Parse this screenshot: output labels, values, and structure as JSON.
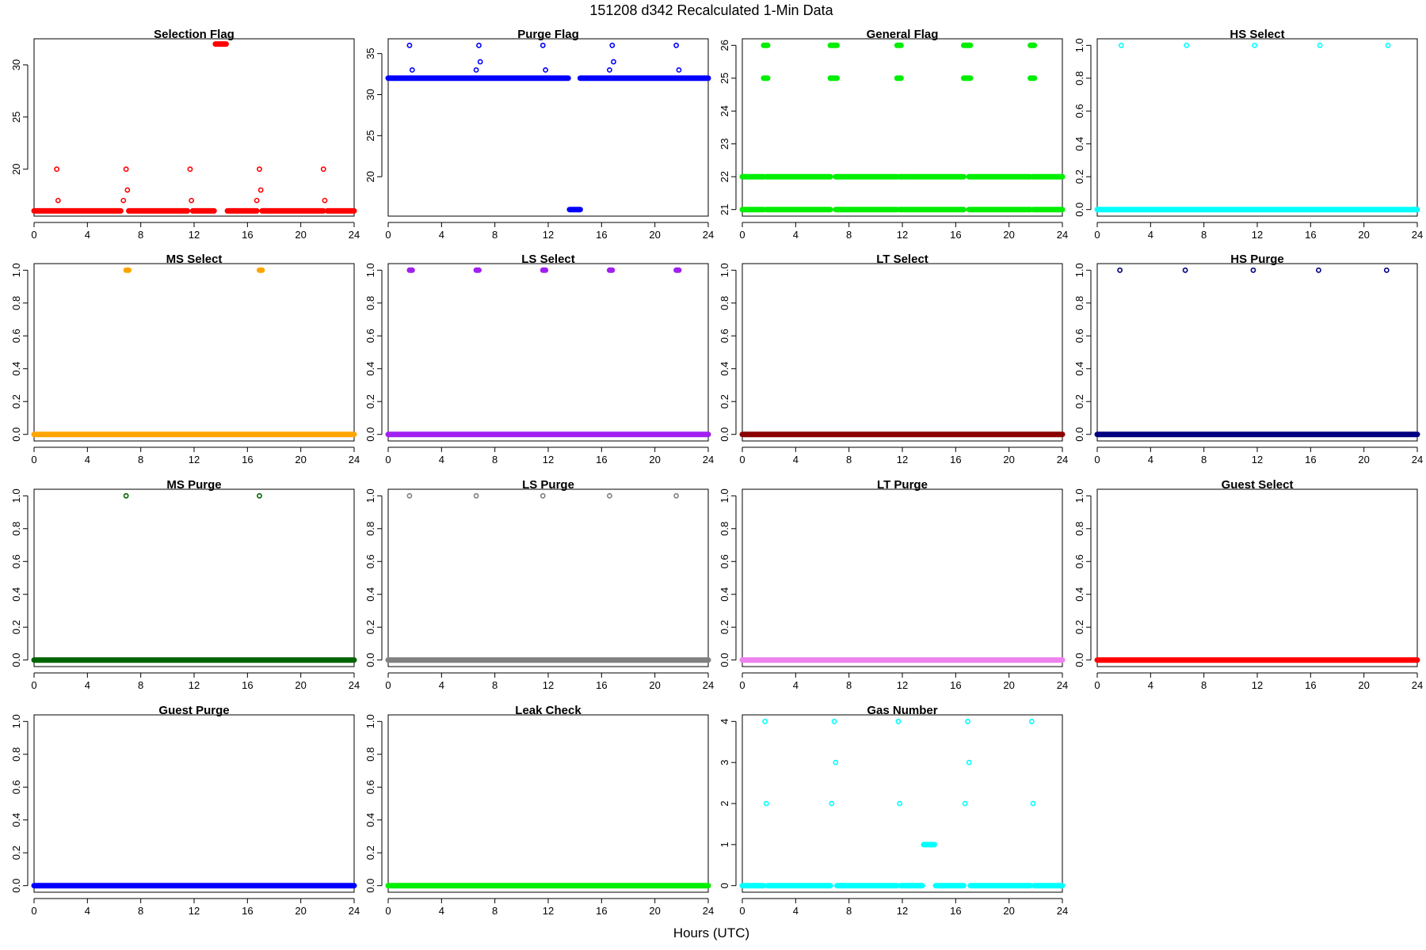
{
  "figure": {
    "title": "151208    d342    Recalculated 1-Min Data",
    "xlabel": "Hours (UTC)"
  },
  "chart_data": [
    {
      "type": "scatter",
      "title": "Selection Flag",
      "color": "#ff0000",
      "filled": false,
      "xlim": [
        0,
        24
      ],
      "ylim": [
        15.5,
        32.5
      ],
      "xticks": [
        0,
        4,
        8,
        12,
        16,
        20,
        24
      ],
      "yticks": [
        20,
        25,
        30
      ],
      "baselines": [
        {
          "y": 16,
          "segments": [
            [
              0,
              6.5
            ],
            [
              7.1,
              11.5
            ],
            [
              11.9,
              13.5
            ],
            [
              14.5,
              16.7
            ],
            [
              17.1,
              21.7
            ],
            [
              22.0,
              24
            ]
          ]
        }
      ],
      "clusters": [
        {
          "y": 32,
          "x0": 13.6,
          "x1": 14.4
        }
      ],
      "points": [
        [
          1.7,
          20
        ],
        [
          1.8,
          17
        ],
        [
          6.7,
          17
        ],
        [
          6.9,
          20
        ],
        [
          7.0,
          18
        ],
        [
          11.7,
          20
        ],
        [
          11.8,
          17
        ],
        [
          16.7,
          17
        ],
        [
          16.9,
          20
        ],
        [
          17.0,
          18
        ],
        [
          21.7,
          20
        ],
        [
          21.8,
          17
        ]
      ]
    },
    {
      "type": "scatter",
      "title": "Purge Flag",
      "color": "#0000ff",
      "filled": false,
      "xlim": [
        0,
        24
      ],
      "ylim": [
        15.2,
        36.8
      ],
      "xticks": [
        0,
        4,
        8,
        12,
        16,
        20,
        24
      ],
      "yticks": [
        20,
        25,
        30,
        35
      ],
      "baselines": [
        {
          "y": 32,
          "segments": [
            [
              0,
              13.5
            ],
            [
              14.4,
              24
            ]
          ]
        }
      ],
      "clusters": [
        {
          "y": 16,
          "x0": 13.6,
          "x1": 14.4
        }
      ],
      "points": [
        [
          1.6,
          36
        ],
        [
          1.8,
          33
        ],
        [
          6.6,
          33
        ],
        [
          6.8,
          36
        ],
        [
          6.9,
          34
        ],
        [
          11.6,
          36
        ],
        [
          11.8,
          33
        ],
        [
          16.6,
          33
        ],
        [
          16.8,
          36
        ],
        [
          16.9,
          34
        ],
        [
          21.6,
          36
        ],
        [
          21.8,
          33
        ]
      ]
    },
    {
      "type": "scatter",
      "title": "General Flag",
      "color": "#00ee00",
      "filled": false,
      "xlim": [
        0,
        24
      ],
      "ylim": [
        20.8,
        26.2
      ],
      "xticks": [
        0,
        4,
        8,
        12,
        16,
        20,
        24
      ],
      "yticks": [
        21,
        22,
        23,
        24,
        25,
        26
      ],
      "baselines": [
        {
          "y": 21,
          "segments": [
            [
              0,
              1.6
            ],
            [
              1.8,
              6.6
            ],
            [
              7.0,
              11.6
            ],
            [
              11.8,
              16.6
            ],
            [
              17.0,
              21.6
            ],
            [
              21.8,
              24
            ]
          ]
        },
        {
          "y": 22,
          "segments": [
            [
              0,
              1.6
            ],
            [
              1.8,
              6.6
            ],
            [
              7.0,
              11.6
            ],
            [
              11.8,
              16.6
            ],
            [
              17.0,
              21.6
            ],
            [
              21.8,
              24
            ]
          ]
        }
      ],
      "clusters": [
        {
          "y": 25,
          "x0": 1.6,
          "x1": 1.9
        },
        {
          "y": 26,
          "x0": 1.6,
          "x1": 1.9
        },
        {
          "y": 25,
          "x0": 6.6,
          "x1": 7.1
        },
        {
          "y": 26,
          "x0": 6.6,
          "x1": 7.1
        },
        {
          "y": 25,
          "x0": 11.6,
          "x1": 11.9
        },
        {
          "y": 26,
          "x0": 11.6,
          "x1": 11.9
        },
        {
          "y": 25,
          "x0": 16.6,
          "x1": 17.1
        },
        {
          "y": 26,
          "x0": 16.6,
          "x1": 17.1
        },
        {
          "y": 25,
          "x0": 21.6,
          "x1": 21.9
        },
        {
          "y": 26,
          "x0": 21.6,
          "x1": 21.9
        }
      ],
      "points": []
    },
    {
      "type": "scatter",
      "title": "HS Select",
      "color": "#00ffff",
      "filled": false,
      "xlim": [
        0,
        24
      ],
      "ylim": [
        -0.04,
        1.04
      ],
      "xticks": [
        0,
        4,
        8,
        12,
        16,
        20,
        24
      ],
      "yticks": [
        0.0,
        0.2,
        0.4,
        0.6,
        0.8,
        1.0
      ],
      "baselines": [
        {
          "y": 0,
          "segments": [
            [
              0,
              24
            ]
          ]
        }
      ],
      "clusters": [],
      "points": [
        [
          1.8,
          1
        ],
        [
          6.7,
          1
        ],
        [
          11.8,
          1
        ],
        [
          16.7,
          1
        ],
        [
          21.8,
          1
        ]
      ]
    },
    {
      "type": "scatter",
      "title": "MS Select",
      "color": "#ffa500",
      "filled": false,
      "xlim": [
        0,
        24
      ],
      "ylim": [
        -0.04,
        1.04
      ],
      "xticks": [
        0,
        4,
        8,
        12,
        16,
        20,
        24
      ],
      "yticks": [
        0.0,
        0.2,
        0.4,
        0.6,
        0.8,
        1.0
      ],
      "baselines": [
        {
          "y": 0,
          "segments": [
            [
              0,
              24
            ]
          ]
        }
      ],
      "clusters": [
        {
          "y": 1,
          "x0": 6.9,
          "x1": 7.1
        },
        {
          "y": 1,
          "x0": 16.9,
          "x1": 17.1
        }
      ],
      "points": []
    },
    {
      "type": "scatter",
      "title": "LS Select",
      "color": "#a020f0",
      "filled": false,
      "xlim": [
        0,
        24
      ],
      "ylim": [
        -0.04,
        1.04
      ],
      "xticks": [
        0,
        4,
        8,
        12,
        16,
        20,
        24
      ],
      "yticks": [
        0.0,
        0.2,
        0.4,
        0.6,
        0.8,
        1.0
      ],
      "baselines": [
        {
          "y": 0,
          "segments": [
            [
              0,
              24
            ]
          ]
        }
      ],
      "clusters": [
        {
          "y": 1,
          "x0": 1.6,
          "x1": 1.8
        },
        {
          "y": 1,
          "x0": 6.6,
          "x1": 6.8
        },
        {
          "y": 1,
          "x0": 11.6,
          "x1": 11.8
        },
        {
          "y": 1,
          "x0": 16.6,
          "x1": 16.8
        },
        {
          "y": 1,
          "x0": 21.6,
          "x1": 21.8
        }
      ],
      "points": []
    },
    {
      "type": "scatter",
      "title": "LT Select",
      "color": "#8b0000",
      "filled": false,
      "xlim": [
        0,
        24
      ],
      "ylim": [
        -0.04,
        1.04
      ],
      "xticks": [
        0,
        4,
        8,
        12,
        16,
        20,
        24
      ],
      "yticks": [
        0.0,
        0.2,
        0.4,
        0.6,
        0.8,
        1.0
      ],
      "baselines": [
        {
          "y": 0,
          "segments": [
            [
              0,
              24
            ]
          ]
        }
      ],
      "clusters": [],
      "points": []
    },
    {
      "type": "scatter",
      "title": "HS Purge",
      "color": "#000080",
      "filled": false,
      "xlim": [
        0,
        24
      ],
      "ylim": [
        -0.04,
        1.04
      ],
      "xticks": [
        0,
        4,
        8,
        12,
        16,
        20,
        24
      ],
      "yticks": [
        0.0,
        0.2,
        0.4,
        0.6,
        0.8,
        1.0
      ],
      "baselines": [
        {
          "y": 0,
          "segments": [
            [
              0,
              24
            ]
          ]
        }
      ],
      "clusters": [],
      "points": [
        [
          1.7,
          1
        ],
        [
          6.6,
          1
        ],
        [
          11.7,
          1
        ],
        [
          16.6,
          1
        ],
        [
          21.7,
          1
        ]
      ]
    },
    {
      "type": "scatter",
      "title": "MS Purge",
      "color": "#006400",
      "filled": false,
      "xlim": [
        0,
        24
      ],
      "ylim": [
        -0.04,
        1.04
      ],
      "xticks": [
        0,
        4,
        8,
        12,
        16,
        20,
        24
      ],
      "yticks": [
        0.0,
        0.2,
        0.4,
        0.6,
        0.8,
        1.0
      ],
      "baselines": [
        {
          "y": 0,
          "segments": [
            [
              0,
              24
            ]
          ]
        }
      ],
      "clusters": [],
      "points": [
        [
          6.9,
          1
        ],
        [
          16.9,
          1
        ]
      ]
    },
    {
      "type": "scatter",
      "title": "LS Purge",
      "color": "#808080",
      "filled": false,
      "xlim": [
        0,
        24
      ],
      "ylim": [
        -0.04,
        1.04
      ],
      "xticks": [
        0,
        4,
        8,
        12,
        16,
        20,
        24
      ],
      "yticks": [
        0.0,
        0.2,
        0.4,
        0.6,
        0.8,
        1.0
      ],
      "baselines": [
        {
          "y": 0,
          "segments": [
            [
              0,
              24
            ]
          ]
        }
      ],
      "clusters": [],
      "points": [
        [
          1.6,
          1
        ],
        [
          6.6,
          1
        ],
        [
          11.6,
          1
        ],
        [
          16.6,
          1
        ],
        [
          21.6,
          1
        ]
      ]
    },
    {
      "type": "scatter",
      "title": "LT Purge",
      "color": "#ee82ee",
      "filled": false,
      "xlim": [
        0,
        24
      ],
      "ylim": [
        -0.04,
        1.04
      ],
      "xticks": [
        0,
        4,
        8,
        12,
        16,
        20,
        24
      ],
      "yticks": [
        0.0,
        0.2,
        0.4,
        0.6,
        0.8,
        1.0
      ],
      "baselines": [
        {
          "y": 0,
          "segments": [
            [
              0,
              24
            ]
          ]
        }
      ],
      "clusters": [],
      "points": []
    },
    {
      "type": "scatter",
      "title": "Guest Select",
      "color": "#ff0000",
      "filled": false,
      "xlim": [
        0,
        24
      ],
      "ylim": [
        -0.04,
        1.04
      ],
      "xticks": [
        0,
        4,
        8,
        12,
        16,
        20,
        24
      ],
      "yticks": [
        0.0,
        0.2,
        0.4,
        0.6,
        0.8,
        1.0
      ],
      "baselines": [
        {
          "y": 0,
          "segments": [
            [
              0,
              24
            ]
          ]
        }
      ],
      "clusters": [],
      "points": []
    },
    {
      "type": "scatter",
      "title": "Guest Purge",
      "color": "#0000ff",
      "filled": false,
      "xlim": [
        0,
        24
      ],
      "ylim": [
        -0.04,
        1.04
      ],
      "xticks": [
        0,
        4,
        8,
        12,
        16,
        20,
        24
      ],
      "yticks": [
        0.0,
        0.2,
        0.4,
        0.6,
        0.8,
        1.0
      ],
      "baselines": [
        {
          "y": 0,
          "segments": [
            [
              0,
              24
            ]
          ]
        }
      ],
      "clusters": [],
      "points": []
    },
    {
      "type": "scatter",
      "title": "Leak Check",
      "color": "#00ee00",
      "filled": false,
      "xlim": [
        0,
        24
      ],
      "ylim": [
        -0.04,
        1.04
      ],
      "xticks": [
        0,
        4,
        8,
        12,
        16,
        20,
        24
      ],
      "yticks": [
        0.0,
        0.2,
        0.4,
        0.6,
        0.8,
        1.0
      ],
      "baselines": [
        {
          "y": 0,
          "segments": [
            [
              0,
              24
            ]
          ]
        }
      ],
      "clusters": [],
      "points": []
    },
    {
      "type": "scatter",
      "title": "Gas Number",
      "color": "#00ffff",
      "filled": false,
      "xlim": [
        0,
        24
      ],
      "ylim": [
        -0.16,
        4.16
      ],
      "xticks": [
        0,
        4,
        8,
        12,
        16,
        20,
        24
      ],
      "yticks": [
        0,
        1,
        2,
        3,
        4
      ],
      "baselines": [
        {
          "y": 0,
          "segments": [
            [
              0,
              1.6
            ],
            [
              1.9,
              6.6
            ],
            [
              7.1,
              11.6
            ],
            [
              11.9,
              13.5
            ],
            [
              14.5,
              16.6
            ],
            [
              17.1,
              21.6
            ],
            [
              21.9,
              24
            ]
          ]
        }
      ],
      "clusters": [
        {
          "y": 1,
          "x0": 13.6,
          "x1": 14.4
        }
      ],
      "points": [
        [
          1.7,
          4
        ],
        [
          1.8,
          2
        ],
        [
          6.7,
          2
        ],
        [
          6.9,
          4
        ],
        [
          7.0,
          3
        ],
        [
          11.7,
          4
        ],
        [
          11.8,
          2
        ],
        [
          16.7,
          2
        ],
        [
          16.9,
          4
        ],
        [
          17.0,
          3
        ],
        [
          21.7,
          4
        ],
        [
          21.8,
          2
        ]
      ]
    }
  ]
}
